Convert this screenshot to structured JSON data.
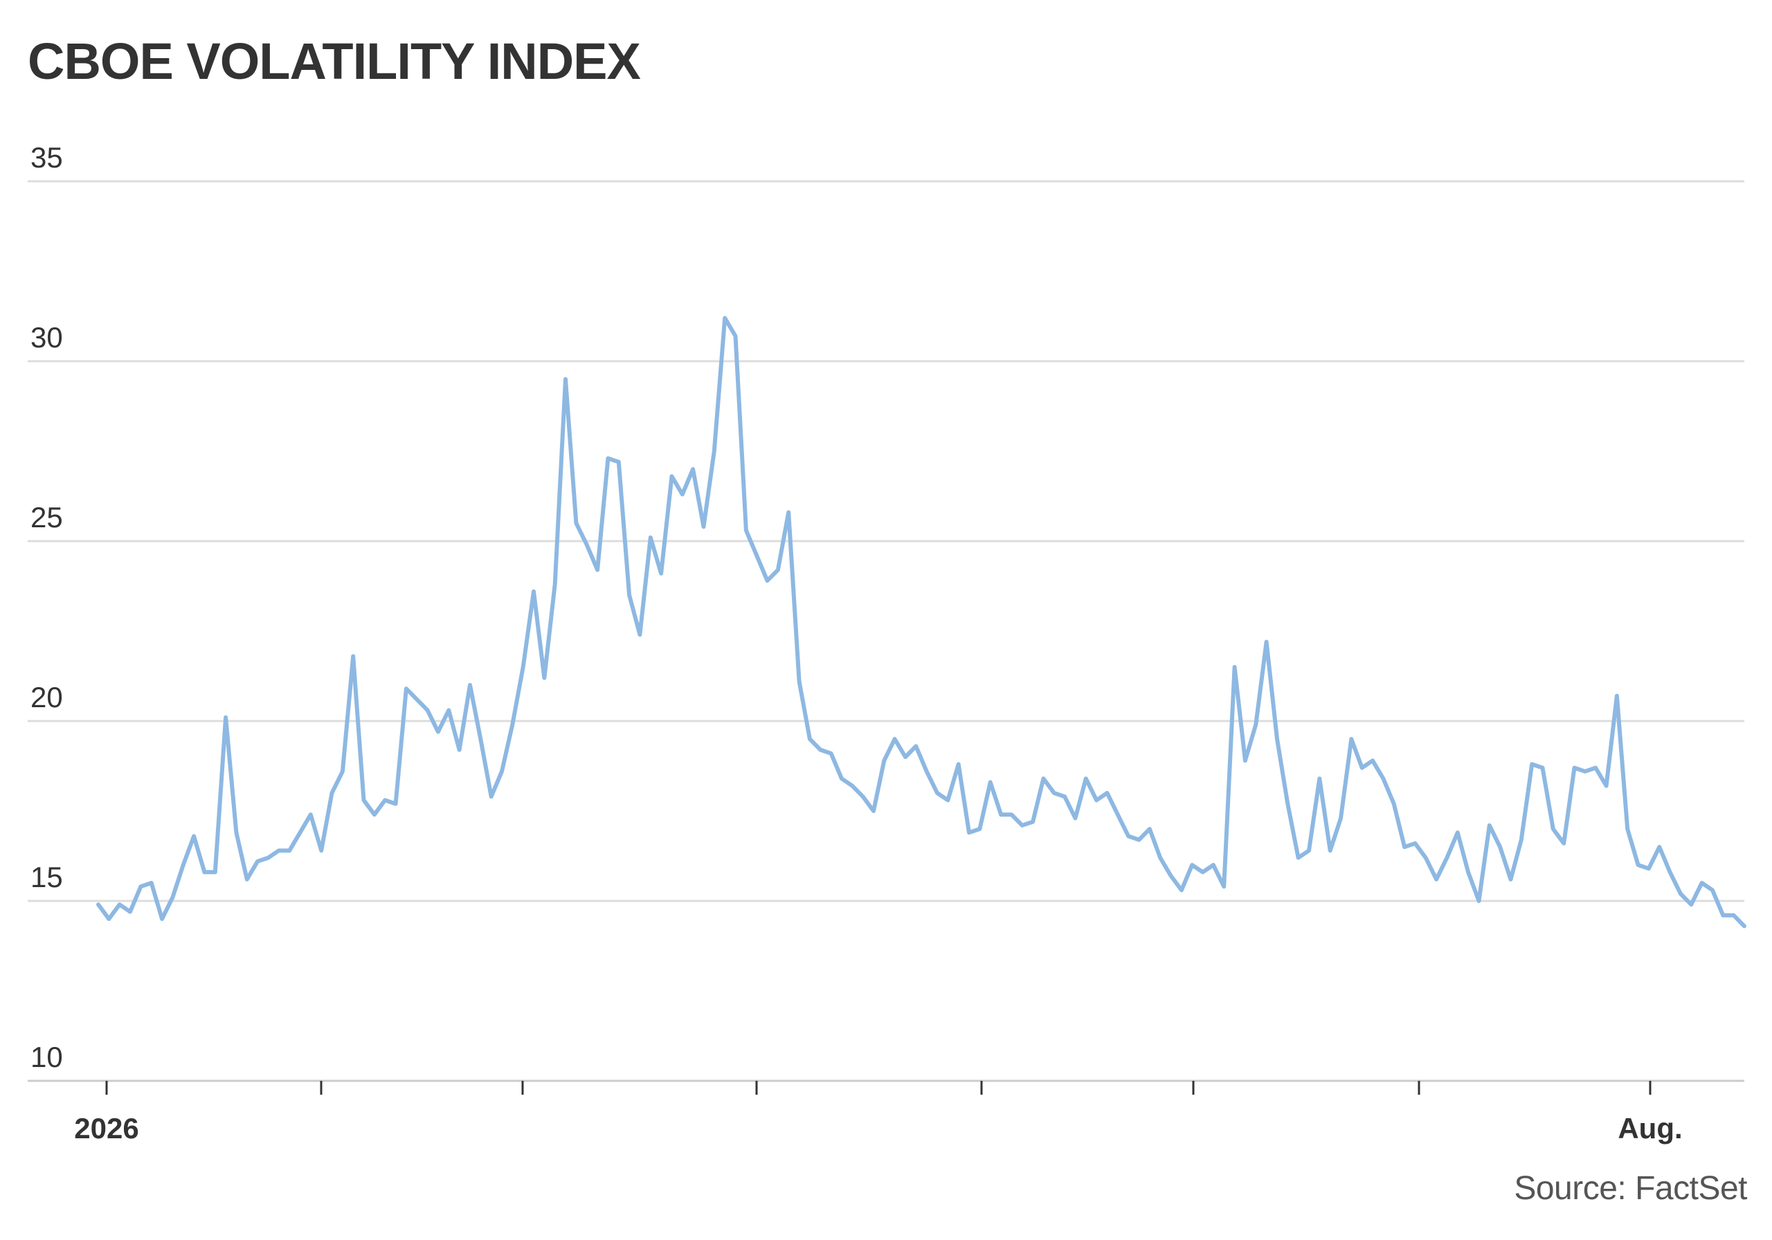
{
  "title": "CBOE VOLATILITY INDEX",
  "source": "Source: FactSet",
  "colors": {
    "line": "#8db8e2",
    "text": "#333333",
    "grid": "#dddddd"
  },
  "chart_data": {
    "type": "line",
    "title": "CBOE VOLATILITY INDEX",
    "xlabel": "",
    "ylabel": "",
    "ylim": [
      10,
      35
    ],
    "yticks": [
      10,
      15,
      20,
      25,
      30,
      35
    ],
    "grid": true,
    "legend": "none",
    "x_axis_labels": [
      {
        "label": "2026",
        "tick_index": 0
      },
      {
        "label": "Aug.",
        "tick_index": 7
      }
    ],
    "x_ticks_count": 8,
    "series": [
      {
        "values": [
          14.9,
          14.5,
          14.9,
          14.7,
          15.4,
          15.5,
          14.5,
          15.1,
          16.0,
          16.8,
          15.8,
          15.8,
          20.1,
          16.9,
          15.6,
          16.1,
          16.2,
          16.4,
          16.4,
          16.9,
          17.4,
          16.4,
          18.0,
          18.6,
          21.8,
          17.8,
          17.4,
          17.8,
          17.7,
          20.9,
          20.6,
          20.3,
          19.7,
          20.3,
          19.2,
          21.0,
          19.5,
          17.9,
          18.6,
          19.9,
          21.5,
          23.6,
          21.2,
          23.8,
          29.5,
          25.5,
          24.9,
          24.2,
          27.3,
          27.2,
          23.5,
          22.4,
          25.1,
          24.1,
          26.8,
          26.3,
          27.0,
          25.4,
          27.5,
          31.2,
          30.7,
          25.3,
          24.6,
          23.9,
          24.2,
          25.8,
          21.1,
          19.5,
          19.2,
          19.1,
          18.4,
          18.2,
          17.9,
          17.5,
          18.9,
          19.5,
          19.0,
          19.3,
          18.6,
          18.0,
          17.8,
          18.8,
          16.9,
          17.0,
          18.3,
          17.4,
          17.4,
          17.1,
          17.2,
          18.4,
          18.0,
          17.9,
          17.3,
          18.4,
          17.8,
          18.0,
          17.4,
          16.8,
          16.7,
          17.0,
          16.2,
          15.7,
          15.3,
          16.0,
          15.8,
          16.0,
          15.4,
          21.5,
          18.9,
          19.9,
          22.2,
          19.5,
          17.7,
          16.2,
          16.4,
          18.4,
          16.4,
          17.3,
          19.5,
          18.7,
          18.9,
          18.4,
          17.7,
          16.5,
          16.6,
          16.2,
          15.6,
          16.2,
          16.9,
          15.8,
          15.0,
          17.1,
          16.5,
          15.6,
          16.7,
          18.8,
          18.7,
          17.0,
          16.6,
          18.7,
          18.6,
          18.7,
          18.2,
          20.7,
          17.0,
          16.0,
          15.9,
          16.5,
          15.8,
          15.2,
          14.9,
          15.5,
          15.3,
          14.6,
          14.6,
          14.3
        ]
      }
    ]
  }
}
